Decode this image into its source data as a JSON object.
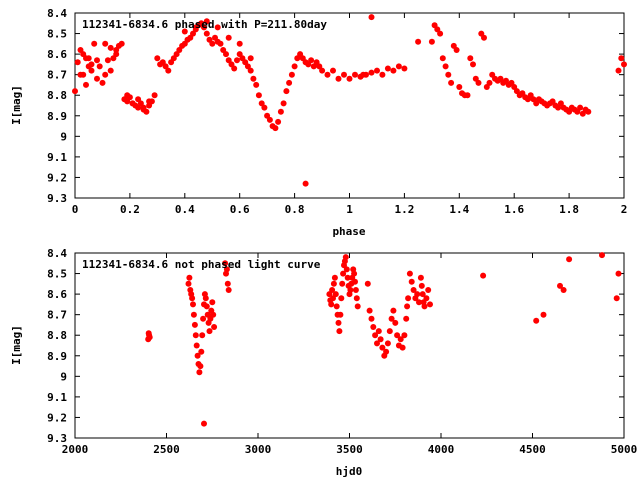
{
  "chart_data": [
    {
      "type": "scatter",
      "title": "112341-6834.6 phased with P=211.80day",
      "xlabel": "phase",
      "ylabel": "I[mag]",
      "xlim": [
        0,
        2
      ],
      "ylim": [
        8.4,
        9.3
      ],
      "y_inverted": true,
      "xticks": [
        "0",
        "0.2",
        "0.4",
        "0.6",
        "0.8",
        "1",
        "1.2",
        "1.4",
        "1.6",
        "1.8",
        "2"
      ],
      "yticks": [
        "8.4",
        "8.5",
        "8.6",
        "8.7",
        "8.8",
        "8.9",
        "9",
        "9.1",
        "9.2",
        "9.3"
      ],
      "marker": "filled-circle",
      "color": "#ff0000",
      "series": [
        {
          "x": [
            0.0,
            0.01,
            0.02,
            0.03,
            0.04,
            0.05,
            0.06,
            0.07,
            0.08,
            0.09,
            0.1,
            0.11,
            0.12,
            0.13,
            0.14,
            0.15,
            0.16,
            0.17,
            0.18,
            0.19,
            0.2,
            0.21,
            0.22,
            0.23,
            0.24,
            0.25,
            0.26,
            0.27,
            0.28,
            0.29,
            0.3,
            0.31,
            0.32,
            0.33,
            0.34,
            0.35,
            0.36,
            0.37,
            0.38,
            0.39,
            0.4,
            0.41,
            0.42,
            0.43,
            0.44,
            0.45,
            0.46,
            0.47,
            0.48,
            0.49,
            0.5,
            0.51,
            0.52,
            0.53,
            0.54,
            0.55,
            0.56,
            0.57,
            0.58,
            0.59,
            0.6,
            0.61,
            0.62,
            0.63,
            0.64,
            0.65,
            0.66,
            0.67,
            0.68,
            0.69,
            0.7,
            0.71,
            0.72,
            0.73,
            0.74,
            0.75,
            0.76,
            0.77,
            0.78,
            0.79,
            0.8,
            0.81,
            0.82,
            0.83,
            0.84,
            0.85,
            0.86,
            0.87,
            0.88,
            0.89,
            0.9,
            0.92,
            0.94,
            0.96,
            0.98,
            1.0,
            1.02,
            1.04,
            1.06,
            1.08,
            1.1,
            1.12,
            1.14,
            1.16,
            1.18,
            1.2,
            1.3,
            1.31,
            1.32,
            1.33,
            1.34,
            1.35,
            1.36,
            1.37,
            1.38,
            1.39,
            1.4,
            1.41,
            1.42,
            1.43,
            1.44,
            1.45,
            1.46,
            1.47,
            1.48,
            1.49,
            1.5,
            1.51,
            1.52,
            1.53,
            1.54,
            1.55,
            1.56,
            1.57,
            1.58,
            1.59,
            1.6,
            1.61,
            1.62,
            1.63,
            1.64,
            1.65,
            1.66,
            1.67,
            1.68,
            1.69,
            1.7,
            1.71,
            1.72,
            1.73,
            1.74,
            1.75,
            1.76,
            1.77,
            1.78,
            1.79,
            1.8,
            1.81,
            1.82,
            1.83,
            1.84,
            1.85,
            1.86,
            1.87,
            0.19,
            0.21,
            0.23,
            0.25,
            0.27,
            0.15,
            0.13,
            0.11,
            0.08,
            0.05,
            0.03,
            0.02,
            0.04,
            0.06,
            0.4,
            0.44,
            0.48,
            0.52,
            0.56,
            0.6,
            0.64,
            0.84,
            1.25,
            1.05,
            1.08,
            1.99,
            2.0,
            1.98
          ],
          "y": [
            8.78,
            8.64,
            8.7,
            8.6,
            8.75,
            8.62,
            8.68,
            8.55,
            8.72,
            8.66,
            8.74,
            8.7,
            8.63,
            8.68,
            8.62,
            8.58,
            8.56,
            8.55,
            8.82,
            8.83,
            8.81,
            8.84,
            8.85,
            8.86,
            8.84,
            8.87,
            8.88,
            8.85,
            8.83,
            8.8,
            8.62,
            8.65,
            8.64,
            8.66,
            8.68,
            8.64,
            8.62,
            8.6,
            8.58,
            8.56,
            8.55,
            8.53,
            8.52,
            8.5,
            8.48,
            8.46,
            8.45,
            8.47,
            8.5,
            8.53,
            8.55,
            8.52,
            8.54,
            8.55,
            8.58,
            8.6,
            8.63,
            8.65,
            8.67,
            8.63,
            8.6,
            8.62,
            8.64,
            8.66,
            8.68,
            8.72,
            8.75,
            8.8,
            8.84,
            8.86,
            8.9,
            8.92,
            8.95,
            8.96,
            8.93,
            8.88,
            8.84,
            8.78,
            8.74,
            8.7,
            8.66,
            8.62,
            8.6,
            8.62,
            8.64,
            8.65,
            8.63,
            8.66,
            8.64,
            8.66,
            8.68,
            8.7,
            8.68,
            8.72,
            8.7,
            8.72,
            8.7,
            8.71,
            8.7,
            8.69,
            8.68,
            8.7,
            8.67,
            8.68,
            8.66,
            8.67,
            8.54,
            8.46,
            8.48,
            8.5,
            8.62,
            8.66,
            8.7,
            8.74,
            8.56,
            8.58,
            8.76,
            8.79,
            8.8,
            8.8,
            8.62,
            8.65,
            8.72,
            8.74,
            8.5,
            8.52,
            8.76,
            8.74,
            8.7,
            8.72,
            8.73,
            8.72,
            8.74,
            8.73,
            8.75,
            8.74,
            8.76,
            8.78,
            8.8,
            8.79,
            8.81,
            8.82,
            8.8,
            8.82,
            8.84,
            8.82,
            8.83,
            8.84,
            8.85,
            8.84,
            8.83,
            8.85,
            8.86,
            8.84,
            8.86,
            8.87,
            8.88,
            8.86,
            8.87,
            8.88,
            8.86,
            8.89,
            8.87,
            8.88,
            8.8,
            8.84,
            8.82,
            8.86,
            8.83,
            8.6,
            8.57,
            8.55,
            8.63,
            8.66,
            8.7,
            8.58,
            8.62,
            8.65,
            8.49,
            8.47,
            8.44,
            8.47,
            8.52,
            8.55,
            8.62,
            9.23,
            8.54,
            8.7,
            8.42,
            8.62,
            8.65,
            8.68
          ]
        }
      ]
    },
    {
      "type": "scatter",
      "title": "112341-6834.6 not phased light curve",
      "xlabel": "hjd0",
      "ylabel": "I[mag]",
      "xlim": [
        2000,
        5000
      ],
      "ylim": [
        8.4,
        9.3
      ],
      "y_inverted": true,
      "xticks": [
        "2000",
        "2500",
        "3000",
        "3500",
        "4000",
        "4500",
        "5000"
      ],
      "yticks": [
        "8.4",
        "8.5",
        "8.6",
        "8.7",
        "8.8",
        "8.9",
        "9",
        "9.1",
        "9.2",
        "9.3"
      ],
      "marker": "filled-circle",
      "color": "#ff0000",
      "series": [
        {
          "x": [
            2400,
            2403,
            2405,
            2408,
            2620,
            2625,
            2630,
            2635,
            2640,
            2645,
            2650,
            2655,
            2660,
            2665,
            2670,
            2675,
            2680,
            2685,
            2690,
            2695,
            2700,
            2705,
            2710,
            2715,
            2720,
            2725,
            2730,
            2735,
            2740,
            2745,
            2750,
            2755,
            2760,
            2705,
            2820,
            2825,
            2830,
            2835,
            2840,
            3390,
            3395,
            3400,
            3405,
            3410,
            3415,
            3420,
            3425,
            3430,
            3435,
            3440,
            3445,
            3450,
            3455,
            3460,
            3465,
            3470,
            3475,
            3480,
            3485,
            3490,
            3495,
            3500,
            3505,
            3510,
            3515,
            3520,
            3525,
            3530,
            3535,
            3540,
            3545,
            3600,
            3610,
            3620,
            3630,
            3640,
            3650,
            3660,
            3670,
            3680,
            3690,
            3700,
            3710,
            3720,
            3730,
            3740,
            3750,
            3760,
            3770,
            3780,
            3790,
            3800,
            3810,
            3815,
            3820,
            3830,
            3840,
            3850,
            3860,
            3870,
            3880,
            3890,
            3895,
            3900,
            3905,
            3910,
            3920,
            3930,
            3940,
            4230,
            4520,
            4560,
            4650,
            4670,
            4700,
            4880,
            4960,
            4970
          ],
          "y": [
            8.82,
            8.79,
            8.8,
            8.81,
            8.55,
            8.52,
            8.58,
            8.6,
            8.62,
            8.65,
            8.7,
            8.75,
            8.8,
            8.85,
            8.9,
            8.94,
            8.98,
            8.95,
            8.88,
            8.8,
            8.72,
            8.65,
            8.6,
            8.62,
            8.66,
            8.7,
            8.74,
            8.78,
            8.72,
            8.68,
            8.64,
            8.7,
            8.76,
            9.23,
            8.45,
            8.5,
            8.48,
            8.55,
            8.58,
            8.6,
            8.63,
            8.65,
            8.58,
            8.62,
            8.55,
            8.52,
            8.6,
            8.66,
            8.7,
            8.74,
            8.78,
            8.7,
            8.62,
            8.55,
            8.5,
            8.46,
            8.44,
            8.42,
            8.48,
            8.52,
            8.56,
            8.6,
            8.58,
            8.55,
            8.52,
            8.48,
            8.5,
            8.54,
            8.58,
            8.62,
            8.66,
            8.55,
            8.68,
            8.72,
            8.76,
            8.8,
            8.84,
            8.78,
            8.82,
            8.86,
            8.9,
            8.88,
            8.84,
            8.78,
            8.72,
            8.68,
            8.74,
            8.8,
            8.85,
            8.82,
            8.86,
            8.8,
            8.72,
            8.66,
            8.62,
            8.5,
            8.54,
            8.58,
            8.62,
            8.6,
            8.64,
            8.52,
            8.56,
            8.6,
            8.64,
            8.66,
            8.62,
            8.58,
            8.65,
            8.51,
            8.73,
            8.7,
            8.56,
            8.58,
            8.43,
            8.41,
            8.62,
            8.5
          ]
        }
      ]
    }
  ]
}
